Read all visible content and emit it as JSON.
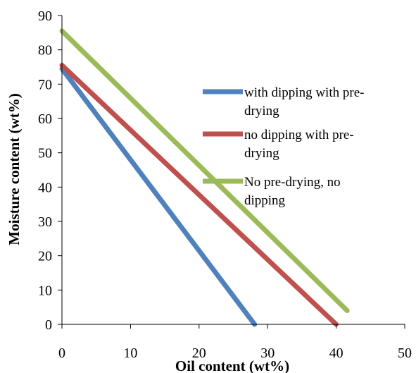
{
  "chart_data": {
    "type": "line",
    "xlabel": "Oil content (wt%)",
    "ylabel": "Moisture content (wt%)",
    "xlim": [
      0,
      50
    ],
    "ylim": [
      0,
      90
    ],
    "x_ticks": [
      "0",
      "10",
      "20",
      "30",
      "40",
      "50"
    ],
    "y_ticks": [
      "0",
      "10",
      "20",
      "30",
      "40",
      "50",
      "60",
      "70",
      "80",
      "90"
    ],
    "grid": false,
    "legend_position": "right",
    "series": [
      {
        "name": "with dipping with pre-drying",
        "legend_lines": [
          "with dipping with pre-",
          "drying"
        ],
        "color": "#4F81BD",
        "x": [
          0,
          28.1
        ],
        "y": [
          74.5,
          0
        ]
      },
      {
        "name": "no dipping with pre-drying",
        "legend_lines": [
          "no dipping with pre-",
          "drying"
        ],
        "color": "#C0504D",
        "x": [
          0,
          40
        ],
        "y": [
          75.5,
          0
        ]
      },
      {
        "name": "No pre-drying, no dipping",
        "legend_lines": [
          "No pre-drying, no",
          "dipping"
        ],
        "color": "#9BBB59",
        "x": [
          0,
          41.6
        ],
        "y": [
          85.5,
          4
        ]
      }
    ]
  }
}
